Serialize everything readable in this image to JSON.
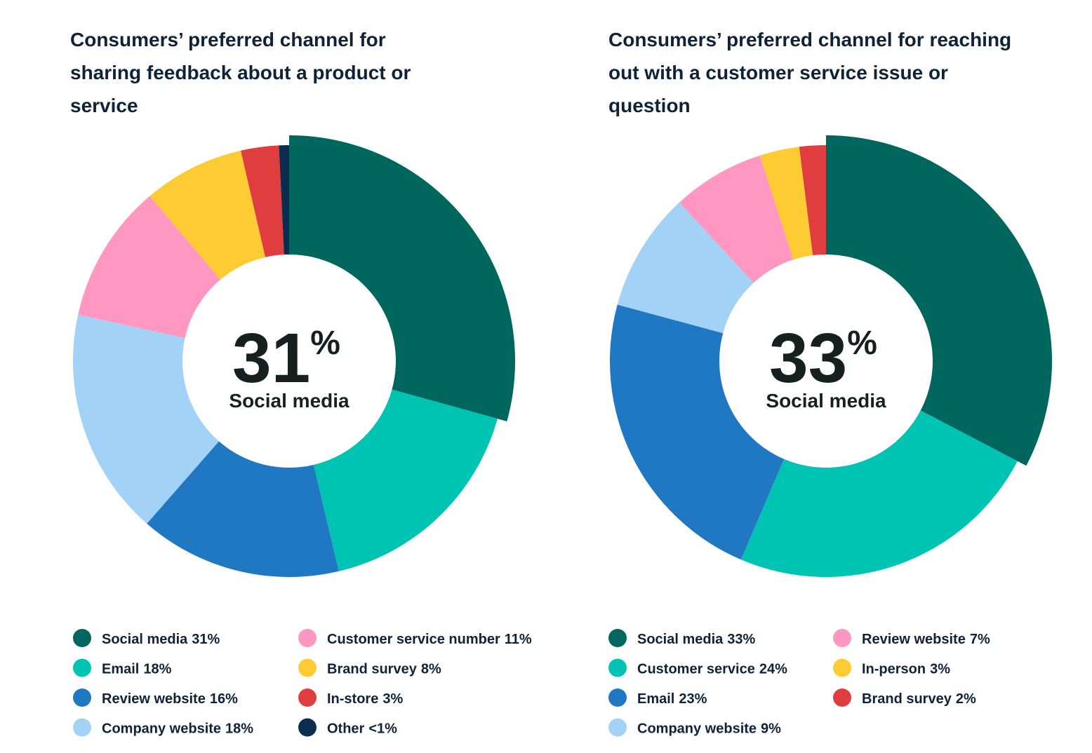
{
  "chart_data": [
    {
      "type": "pie",
      "title": "Consumers’ preferred channel for sharing feedback about a product or service",
      "center_value": "31",
      "center_unit": "%",
      "center_label": "Social media",
      "categories": [
        "Social media",
        "Email",
        "Review website",
        "Company website",
        "Customer service number",
        "Brand survey",
        "In-store",
        "Other"
      ],
      "values": [
        31,
        18,
        16,
        18,
        11,
        8,
        3,
        0.8
      ],
      "value_labels": [
        "31%",
        "18%",
        "16%",
        "18%",
        "11%",
        "8%",
        "3%",
        "<1%"
      ],
      "colors": [
        "#00665e",
        "#00c4b3",
        "#1f78c1",
        "#a3d2f7",
        "#ff97c1",
        "#ffcb32",
        "#e03e3e",
        "#0b2d4f"
      ]
    },
    {
      "type": "pie",
      "title": "Consumers’ preferred channel for reaching out with a customer service issue or question",
      "center_value": "33",
      "center_unit": "%",
      "center_label": "Social media",
      "categories": [
        "Social media",
        "Customer service",
        "Email",
        "Company website",
        "Review website",
        "In-person",
        "Brand survey"
      ],
      "values": [
        33,
        24,
        23,
        9,
        7,
        3,
        2
      ],
      "value_labels": [
        "33%",
        "24%",
        "23%",
        "9%",
        "7%",
        "3%",
        "2%"
      ],
      "colors": [
        "#00665e",
        "#00c4b3",
        "#1f78c1",
        "#a3d2f7",
        "#ff97c1",
        "#ffcb32",
        "#e03e3e"
      ]
    }
  ]
}
